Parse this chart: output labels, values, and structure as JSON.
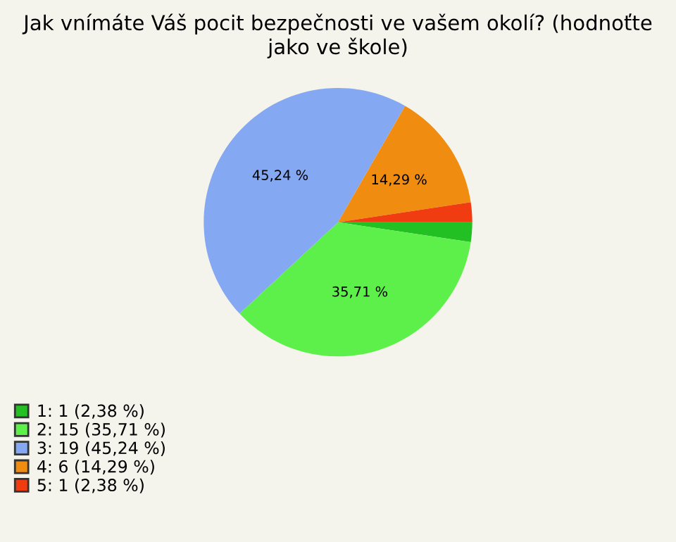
{
  "chart_data": {
    "type": "pie",
    "title": "Jak vnímáte Váš pocit bezpečnosti ve vašem okolí? (hodnoťte jako ve škole)",
    "categories": [
      "1: 1 (2,38 %)",
      "2: 15 (35,71 %)",
      "3: 19 (45,24 %)",
      "4: 6 (14,29 %)",
      "5: 1 (2,38 %)"
    ],
    "values": [
      2.38,
      35.71,
      45.24,
      14.29,
      2.38
    ],
    "value_labels": [
      null,
      "35,71 %",
      "45,24 %",
      "14,29 %",
      null
    ],
    "colors": [
      "#22c022",
      "#5ef04a",
      "#84a8f2",
      "#f08c10",
      "#f03c10"
    ],
    "legend": "bottom left"
  }
}
